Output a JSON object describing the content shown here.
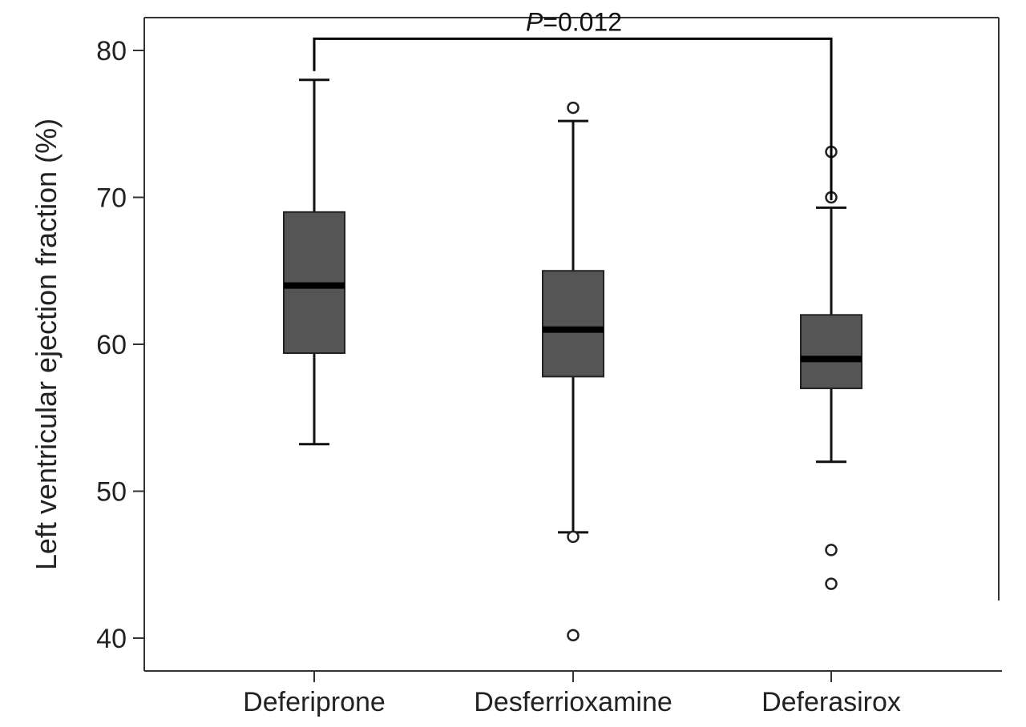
{
  "chart_data": {
    "type": "box",
    "title": "",
    "xlabel": "",
    "ylabel": "Left ventricular ejection fraction (%)",
    "ylim": [
      38,
      82
    ],
    "y_ticks": [
      40,
      50,
      60,
      70,
      80
    ],
    "y_tick_labels": [
      "40",
      "50",
      "60",
      "70",
      "80"
    ],
    "grid": false,
    "legend": "none",
    "categories": [
      "Deferiprone",
      "Desferrioxamine",
      "Deferasirox"
    ],
    "boxes": [
      {
        "category": "Deferiprone",
        "whisker_low": 53.2,
        "q1": 59.4,
        "median": 64.0,
        "q3": 69.0,
        "whisker_high": 78.0,
        "outliers": []
      },
      {
        "category": "Desferrioxamine",
        "whisker_low": 47.2,
        "q1": 57.8,
        "median": 61.0,
        "q3": 65.0,
        "whisker_high": 75.2,
        "outliers": [
          76.1,
          46.9,
          40.2
        ]
      },
      {
        "category": "Deferasirox",
        "whisker_low": 52.0,
        "q1": 57.0,
        "median": 59.0,
        "q3": 62.0,
        "whisker_high": 69.3,
        "outliers": [
          73.1,
          70.0,
          46.0,
          43.7
        ]
      }
    ],
    "annotations": [
      {
        "type": "significance-bracket",
        "from_category": "Deferiprone",
        "to_category": "Deferasirox",
        "level": 80.8,
        "left_drop_to": 78.6,
        "right_drop_to": 69.8,
        "label_italic": "P",
        "label_rest": "=0.012"
      }
    ],
    "colors": {
      "box_fill": "#555555",
      "box_stroke": "#222222",
      "median_line": "#000000",
      "whisker": "#111111",
      "axis": "#333333",
      "outlier_stroke": "#222222"
    }
  }
}
